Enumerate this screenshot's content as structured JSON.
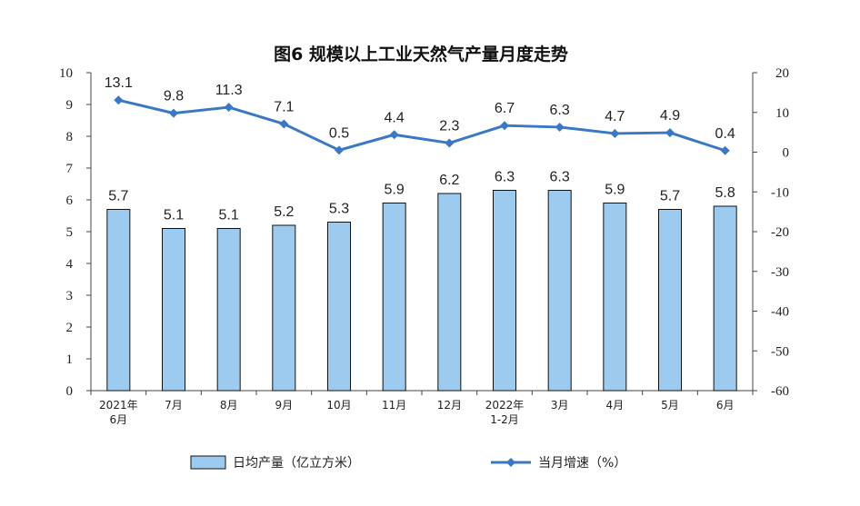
{
  "chart_data": {
    "type": "bar",
    "title": "图6  规模以上工业天然气产量月度走势",
    "categories": [
      [
        "2021年",
        "6月"
      ],
      [
        "7月"
      ],
      [
        "8月"
      ],
      [
        "9月"
      ],
      [
        "10月"
      ],
      [
        "11月"
      ],
      [
        "12月"
      ],
      [
        "2022年",
        "1-2月"
      ],
      [
        "3月"
      ],
      [
        "4月"
      ],
      [
        "5月"
      ],
      [
        "6月"
      ]
    ],
    "series": [
      {
        "name": "日均产量（亿立方米）",
        "type": "bar",
        "axis": "left",
        "color": "#9dcbf0",
        "values": [
          5.7,
          5.1,
          5.1,
          5.2,
          5.3,
          5.9,
          6.2,
          6.3,
          6.3,
          5.9,
          5.7,
          5.8
        ],
        "labels": [
          "5.7",
          "5.1",
          "5.1",
          "5.2",
          "5.3",
          "5.9",
          "6.2",
          "6.3",
          "6.3",
          "5.9",
          "5.7",
          "5.8"
        ]
      },
      {
        "name": "当月增速（%）",
        "type": "line",
        "axis": "right",
        "color": "#3a78c6",
        "values": [
          13.1,
          9.8,
          11.3,
          7.1,
          0.5,
          4.4,
          2.3,
          6.7,
          6.3,
          4.7,
          4.9,
          0.4
        ],
        "labels": [
          "13.1",
          "9.8",
          "11.3",
          "7.1",
          "0.5",
          "4.4",
          "2.3",
          "6.7",
          "6.3",
          "4.7",
          "4.9",
          "0.4"
        ]
      }
    ],
    "y_left": {
      "min": 0,
      "max": 10,
      "step": 1,
      "ticks": [
        "0",
        "1",
        "2",
        "3",
        "4",
        "5",
        "6",
        "7",
        "8",
        "9",
        "10"
      ]
    },
    "y_right": {
      "min": -60,
      "max": 20,
      "step": 10,
      "ticks": [
        "-60",
        "-50",
        "-40",
        "-30",
        "-20",
        "-10",
        "0",
        "10",
        "20"
      ]
    },
    "grid": false,
    "legend_position": "bottom"
  }
}
